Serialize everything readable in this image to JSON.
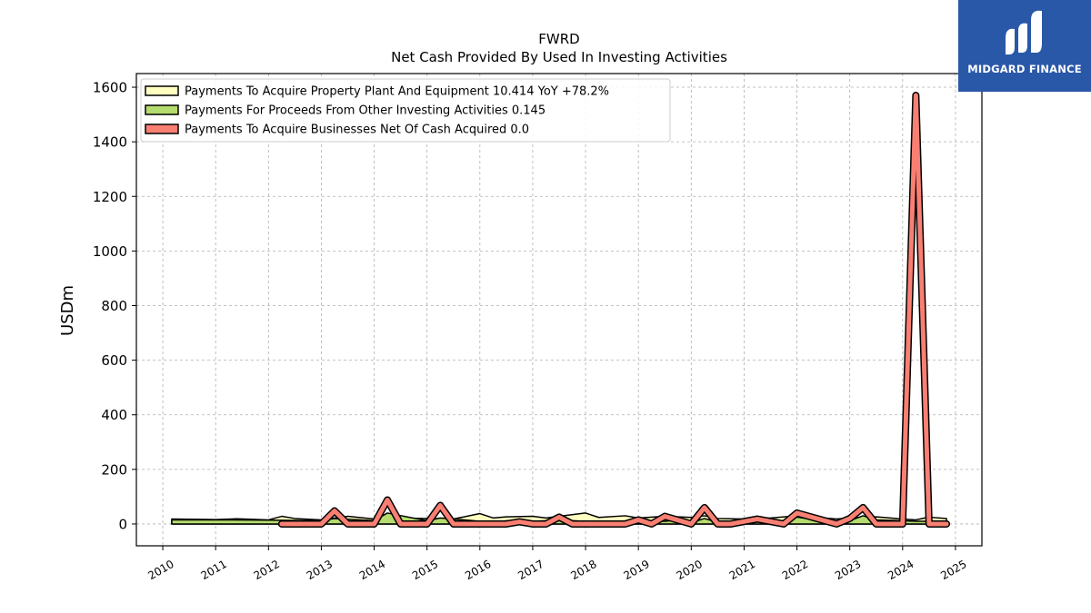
{
  "brand": {
    "name": "MIDGARD FINANCE",
    "bg_color": "#2a58a8"
  },
  "chart_data": {
    "type": "area",
    "title": "FWRD",
    "subtitle": "Net Cash Provided By Used In Investing Activities",
    "xlabel": "",
    "ylabel": "USDm",
    "xlim": [
      2009.5,
      2025.5
    ],
    "ylim": [
      -80,
      1650
    ],
    "x_ticks": [
      "2010",
      "2011",
      "2012",
      "2013",
      "2014",
      "2015",
      "2016",
      "2017",
      "2018",
      "2019",
      "2020",
      "2021",
      "2022",
      "2023",
      "2024",
      "2025"
    ],
    "y_ticks": [
      0,
      200,
      400,
      600,
      800,
      1000,
      1200,
      1400,
      1600
    ],
    "grid": true,
    "legend_position": "top-left",
    "series": [
      {
        "name": "Payments To Acquire Property Plant And Equipment",
        "legend": "Payments To Acquire Property Plant And Equipment  10.414 YoY +78.2%",
        "style": "area",
        "color": "#ffffc0",
        "points": [
          [
            2010.17,
            18
          ],
          [
            2011.0,
            16
          ],
          [
            2011.4,
            19
          ],
          [
            2012.0,
            15
          ],
          [
            2012.25,
            28
          ],
          [
            2012.5,
            20
          ],
          [
            2013.0,
            15
          ],
          [
            2013.5,
            28
          ],
          [
            2014.0,
            18
          ],
          [
            2014.25,
            30
          ],
          [
            2014.5,
            22
          ],
          [
            2015.0,
            20
          ],
          [
            2015.5,
            18
          ],
          [
            2016.0,
            38
          ],
          [
            2016.25,
            22
          ],
          [
            2016.5,
            26
          ],
          [
            2017.0,
            28
          ],
          [
            2017.25,
            22
          ],
          [
            2017.5,
            28
          ],
          [
            2018.0,
            40
          ],
          [
            2018.25,
            24
          ],
          [
            2018.75,
            30
          ],
          [
            2019.0,
            22
          ],
          [
            2019.5,
            28
          ],
          [
            2020.0,
            24
          ],
          [
            2020.25,
            30
          ],
          [
            2020.5,
            20
          ],
          [
            2021.0,
            18
          ],
          [
            2021.5,
            22
          ],
          [
            2022.0,
            30
          ],
          [
            2022.25,
            26
          ],
          [
            2022.75,
            18
          ],
          [
            2023.0,
            22
          ],
          [
            2023.5,
            26
          ],
          [
            2024.0,
            18
          ],
          [
            2024.25,
            15
          ],
          [
            2024.5,
            25
          ],
          [
            2024.83,
            20
          ]
        ]
      },
      {
        "name": "Payments For Proceeds From Other Investing Activities",
        "legend": "Payments For Proceeds From Other Investing Activities  0.145",
        "style": "area",
        "color": "#b5dc6e",
        "points": [
          [
            2010.17,
            15
          ],
          [
            2011.0,
            15
          ],
          [
            2012.0,
            14
          ],
          [
            2013.0,
            12
          ],
          [
            2013.25,
            20
          ],
          [
            2014.0,
            12
          ],
          [
            2014.25,
            40
          ],
          [
            2015.0,
            12
          ],
          [
            2015.25,
            22
          ],
          [
            2016.0,
            10
          ],
          [
            2016.25,
            8
          ],
          [
            2016.75,
            15
          ],
          [
            2017.0,
            10
          ],
          [
            2017.25,
            12
          ],
          [
            2017.75,
            12
          ],
          [
            2018.0,
            10
          ],
          [
            2018.75,
            10
          ],
          [
            2019.0,
            12
          ],
          [
            2019.5,
            10
          ],
          [
            2019.75,
            15
          ],
          [
            2020.0,
            5
          ],
          [
            2020.25,
            20
          ],
          [
            2020.5,
            6
          ],
          [
            2020.75,
            4
          ],
          [
            2021.0,
            2
          ],
          [
            2021.25,
            8
          ],
          [
            2021.75,
            5
          ],
          [
            2022.0,
            25
          ],
          [
            2022.25,
            18
          ],
          [
            2022.75,
            5
          ],
          [
            2023.0,
            12
          ],
          [
            2023.25,
            30
          ],
          [
            2023.5,
            15
          ],
          [
            2024.0,
            12
          ],
          [
            2024.25,
            10
          ],
          [
            2024.5,
            10
          ],
          [
            2024.83,
            8
          ]
        ]
      },
      {
        "name": "Payments To Acquire Businesses Net Of Cash Acquired",
        "legend": "Payments To Acquire Businesses Net Of Cash Acquired  0.0",
        "style": "line",
        "color": "#f87f72",
        "points": [
          [
            2012.25,
            0
          ],
          [
            2013.0,
            0
          ],
          [
            2013.25,
            48
          ],
          [
            2013.5,
            0
          ],
          [
            2014.0,
            0
          ],
          [
            2014.25,
            88
          ],
          [
            2014.5,
            0
          ],
          [
            2015.0,
            0
          ],
          [
            2015.25,
            68
          ],
          [
            2015.5,
            0
          ],
          [
            2016.0,
            0
          ],
          [
            2016.5,
            0
          ],
          [
            2016.75,
            8
          ],
          [
            2017.0,
            0
          ],
          [
            2017.25,
            0
          ],
          [
            2017.5,
            25
          ],
          [
            2017.75,
            0
          ],
          [
            2018.0,
            0
          ],
          [
            2018.75,
            0
          ],
          [
            2019.0,
            15
          ],
          [
            2019.25,
            0
          ],
          [
            2019.5,
            28
          ],
          [
            2020.0,
            0
          ],
          [
            2020.25,
            60
          ],
          [
            2020.5,
            0
          ],
          [
            2020.75,
            0
          ],
          [
            2021.25,
            18
          ],
          [
            2021.75,
            0
          ],
          [
            2022.0,
            40
          ],
          [
            2022.75,
            0
          ],
          [
            2023.0,
            20
          ],
          [
            2023.25,
            60
          ],
          [
            2023.5,
            0
          ],
          [
            2024.0,
            0
          ],
          [
            2024.25,
            1570
          ],
          [
            2024.5,
            0
          ],
          [
            2024.83,
            0
          ]
        ]
      }
    ]
  }
}
